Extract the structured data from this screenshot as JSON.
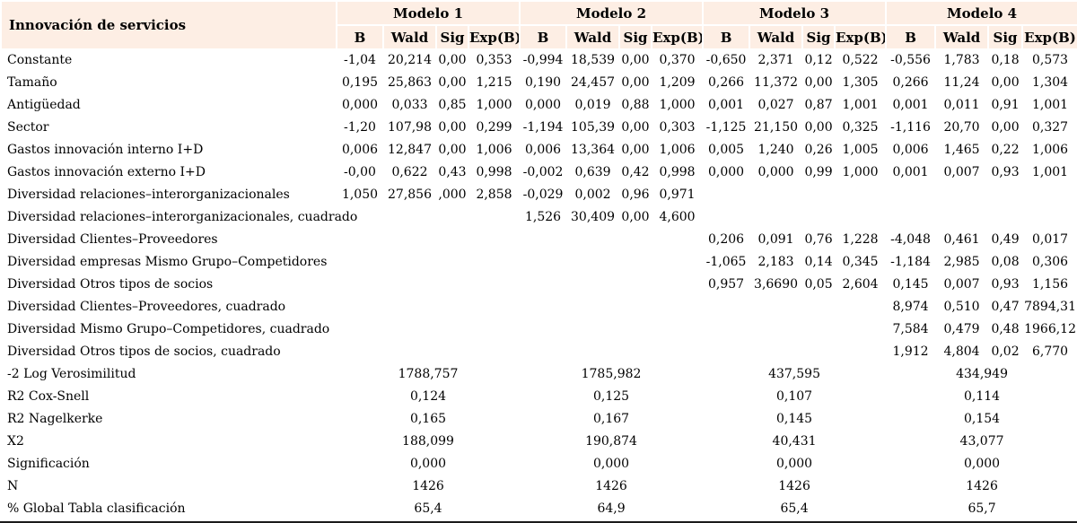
{
  "table": {
    "corner_label": "Innovación de servicios",
    "models": [
      "Modelo 1",
      "Modelo 2",
      "Modelo 3",
      "Modelo 4"
    ],
    "stat_headers": [
      "B",
      "Wald",
      "Sig",
      "Exp(B)"
    ],
    "detail_rows": [
      {
        "label": "Constante",
        "values": [
          "-1,04",
          "20,214",
          "0,00",
          "0,353",
          "-0,994",
          "18,539",
          "0,00",
          "0,370",
          "-0,650",
          "2,371",
          "0,12",
          "0,522",
          "-0,556",
          "1,783",
          "0,18",
          "0,573"
        ]
      },
      {
        "label": "Tamaño",
        "values": [
          "0,195",
          "25,863",
          "0,00",
          "1,215",
          "0,190",
          "24,457",
          "0,00",
          "1,209",
          "0,266",
          "11,372",
          "0,00",
          "1,305",
          "0,266",
          "11,24",
          "0,00",
          "1,304"
        ]
      },
      {
        "label": "Antigüedad",
        "values": [
          "0,000",
          "0,033",
          "0,85",
          "1,000",
          "0,000",
          "0,019",
          "0,88",
          "1,000",
          "0,001",
          "0,027",
          "0,87",
          "1,001",
          "0,001",
          "0,011",
          "0,91",
          "1,001"
        ]
      },
      {
        "label": "Sector",
        "values": [
          "-1,20",
          "107,98",
          "0,00",
          "0,299",
          "-1,194",
          "105,39",
          "0,00",
          "0,303",
          "-1,125",
          "21,150",
          "0,00",
          "0,325",
          "-1,116",
          "20,70",
          "0,00",
          "0,327"
        ]
      },
      {
        "label": "Gastos innovación interno I+D",
        "values": [
          "0,006",
          "12,847",
          "0,00",
          "1,006",
          "0,006",
          "13,364",
          "0,00",
          "1,006",
          "0,005",
          "1,240",
          "0,26",
          "1,005",
          "0,006",
          "1,465",
          "0,22",
          "1,006"
        ]
      },
      {
        "label": "Gastos innovación externo I+D",
        "values": [
          "-0,00",
          "0,622",
          "0,43",
          "0,998",
          "-0,002",
          "0,639",
          "0,42",
          "0,998",
          "0,000",
          "0,000",
          "0,99",
          "1,000",
          "0,001",
          "0,007",
          "0,93",
          "1,001"
        ]
      },
      {
        "label": "Diversidad relaciones–interorganizacionales",
        "values": [
          "1,050",
          "27,856",
          ",000",
          "2,858",
          "-0,029",
          "0,002",
          "0,96",
          "0,971",
          "",
          "",
          "",
          "",
          "",
          "",
          "",
          ""
        ]
      },
      {
        "label": "Diversidad relaciones–interorganizacionales, cuadrado",
        "values": [
          "",
          "",
          "",
          "",
          "1,526",
          "30,409",
          "0,00",
          "4,600",
          "",
          "",
          "",
          "",
          "",
          "",
          "",
          ""
        ]
      },
      {
        "label": "Diversidad Clientes–Proveedores",
        "values": [
          "",
          "",
          "",
          "",
          "",
          "",
          "",
          "",
          "0,206",
          "0,091",
          "0,76",
          "1,228",
          "-4,048",
          "0,461",
          "0,49",
          "0,017"
        ]
      },
      {
        "label": "Diversidad empresas Mismo Grupo–Competidores",
        "values": [
          "",
          "",
          "",
          "",
          "",
          "",
          "",
          "",
          "-1,065",
          "2,183",
          "0,14",
          "0,345",
          "-1,184",
          "2,985",
          "0,08",
          "0,306"
        ]
      },
      {
        "label": "Diversidad Otros tipos de socios",
        "values": [
          "",
          "",
          "",
          "",
          "",
          "",
          "",
          "",
          "0,957",
          "3,6690",
          "0,05",
          "2,604",
          "0,145",
          "0,007",
          "0,93",
          "1,156"
        ]
      },
      {
        "label": "Diversidad Clientes–Proveedores, cuadrado",
        "values": [
          "",
          "",
          "",
          "",
          "",
          "",
          "",
          "",
          "",
          "",
          "",
          "",
          "8,974",
          "0,510",
          "0,47",
          "7894,31"
        ]
      },
      {
        "label": "Diversidad Mismo Grupo–Competidores, cuadrado",
        "values": [
          "",
          "",
          "",
          "",
          "",
          "",
          "",
          "",
          "",
          "",
          "",
          "",
          "7,584",
          "0,479",
          "0,48",
          "1966,12"
        ]
      },
      {
        "label": "Diversidad Otros tipos de socios, cuadrado",
        "values": [
          "",
          "",
          "",
          "",
          "",
          "",
          "",
          "",
          "",
          "",
          "",
          "",
          "1,912",
          "4,804",
          "0,02",
          "6,770"
        ]
      }
    ],
    "summary_rows": [
      {
        "label": "-2 Log Verosimilitud",
        "values": [
          "1788,757",
          "1785,982",
          "437,595",
          "434,949"
        ]
      },
      {
        "label": "R2 Cox-Snell",
        "values": [
          "0,124",
          "0,125",
          "0,107",
          "0,114"
        ]
      },
      {
        "label": "R2 Nagelkerke",
        "values": [
          "0,165",
          "0,167",
          "0,145",
          "0,154"
        ]
      },
      {
        "label": "X2",
        "values": [
          "188,099",
          "190,874",
          "40,431",
          "43,077"
        ]
      },
      {
        "label": "Significación",
        "values": [
          "0,000",
          "0,000",
          "0,000",
          "0,000"
        ]
      },
      {
        "label": "N",
        "values": [
          "1426",
          "1426",
          "1426",
          "1426"
        ]
      },
      {
        "label": "% Global Tabla clasificación",
        "values": [
          "65,4",
          "64,9",
          "65,4",
          "65,7"
        ]
      }
    ],
    "colors": {
      "header_bg": "#fdeee4",
      "bottom_rule": "#1a1a1a"
    }
  }
}
